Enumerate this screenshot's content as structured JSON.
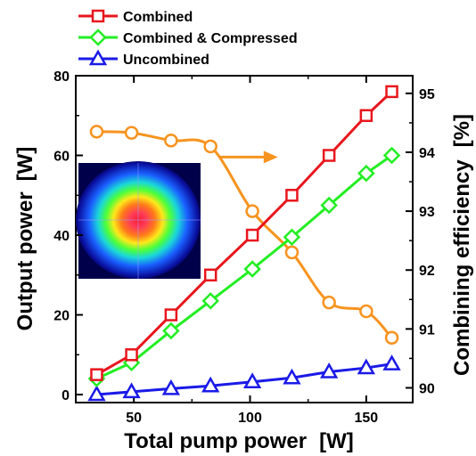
{
  "chart_data": {
    "type": "line",
    "xlabel": "Total pump power",
    "xunit": "[W]",
    "ylabel": "Output power",
    "yunit": "[W]",
    "y2label": "Combining efficiency",
    "y2unit": "[%]",
    "xlim": [
      25,
      170
    ],
    "ylim": [
      -2,
      80
    ],
    "y2lim": [
      89.75,
      95.3
    ],
    "xticks": [
      "50",
      "100",
      "150"
    ],
    "xtick_values": [
      50,
      100,
      150
    ],
    "yticks": [
      "0",
      "20",
      "40",
      "60",
      "80"
    ],
    "ytick_values": [
      0,
      20,
      40,
      60,
      80
    ],
    "y2ticks": [
      "90",
      "91",
      "92",
      "93",
      "94",
      "95"
    ],
    "y2tick_values": [
      90,
      91,
      92,
      93,
      94,
      95
    ],
    "legend_position": "top",
    "grid": false,
    "series": [
      {
        "name": "Combined",
        "axis": "left",
        "color": "#e8161d",
        "marker": "square",
        "x": [
          34,
          49,
          66,
          83,
          101,
          118,
          134,
          150,
          161
        ],
        "y": [
          5,
          10,
          20,
          30,
          40,
          50,
          60,
          70,
          76
        ]
      },
      {
        "name": "Combined & Compressed",
        "axis": "left",
        "color": "#22ee22",
        "marker": "diamond",
        "x": [
          34,
          49,
          66,
          83,
          101,
          118,
          134,
          150,
          161
        ],
        "y": [
          4,
          8,
          16,
          23.5,
          31.5,
          39.5,
          47.5,
          55.5,
          60
        ]
      },
      {
        "name": "Uncombined",
        "axis": "left",
        "color": "#1a1ae8",
        "marker": "triangle",
        "x": [
          34,
          49,
          66,
          83,
          101,
          118,
          134,
          150,
          161
        ],
        "y": [
          0,
          0.7,
          1.5,
          2.2,
          3.2,
          4.2,
          5.7,
          6.7,
          7.7
        ]
      },
      {
        "axis": "right",
        "color": "#f7931e",
        "marker": "circle",
        "smooth": true,
        "x": [
          34,
          49,
          66,
          83,
          101,
          118,
          134,
          150,
          161
        ],
        "y": [
          94.35,
          94.33,
          94.2,
          94.1,
          93.0,
          92.3,
          91.45,
          91.3,
          90.85
        ]
      }
    ],
    "annotation": {
      "type": "arrow",
      "color": "#f7931e",
      "from": [
        83,
        94.1
      ],
      "to": [
        112,
        93.8
      ],
      "points_to_axis": "right"
    },
    "inset": {
      "type": "image",
      "description_icon": "beam-profile-image"
    }
  }
}
